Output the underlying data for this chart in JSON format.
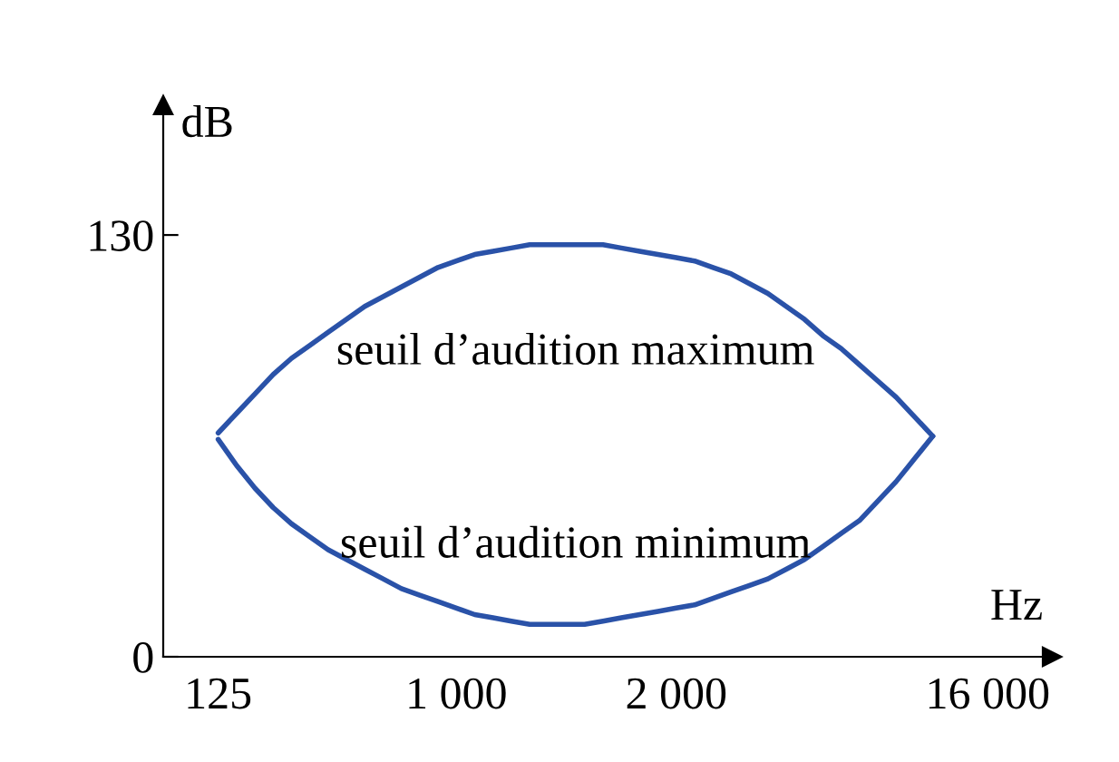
{
  "chart_data": {
    "type": "line",
    "xlabel": "Hz",
    "ylabel": "dB",
    "categories": [
      null,
      null,
      null,
      "125",
      null,
      null,
      null,
      null,
      null,
      null,
      null,
      null,
      null,
      null,
      null,
      null,
      "1 000",
      null,
      null,
      null,
      null,
      null,
      null,
      null,
      null,
      null,
      null,
      null,
      "2 000",
      null,
      null,
      null,
      null,
      null,
      null,
      null,
      null,
      null,
      null,
      null,
      null,
      null,
      null,
      null,
      null,
      "16 000",
      null,
      null,
      null
    ],
    "series": [
      {
        "name": "seuil d’audition maximum",
        "color": "#2a52a8",
        "values": [
          null,
          null,
          null,
          69,
          75,
          81,
          87,
          92,
          96,
          100,
          104,
          108,
          111,
          114,
          117,
          120,
          122,
          124,
          125,
          126,
          127,
          127,
          127,
          127,
          127,
          126,
          125,
          124,
          123,
          122,
          120,
          118,
          115,
          112,
          108,
          104,
          99,
          95,
          90,
          85,
          80,
          74,
          68,
          null,
          null,
          null,
          null,
          null,
          null
        ]
      },
      {
        "name": "seuil d’audition minimum",
        "color": "#2a52a8",
        "values": [
          null,
          null,
          null,
          67,
          59,
          52,
          46,
          41,
          37,
          33,
          30,
          27,
          24,
          21,
          19,
          17,
          15,
          13,
          12,
          11,
          10,
          10,
          10,
          10,
          11,
          12,
          13,
          14,
          15,
          16,
          18,
          20,
          22,
          24,
          27,
          30,
          34,
          38,
          42,
          48,
          54,
          61,
          68,
          null,
          null,
          null,
          null,
          null,
          null
        ]
      }
    ],
    "ylim": [
      0,
      170
    ],
    "yticks": [
      0,
      130
    ],
    "grid": false,
    "legend": false,
    "marker": "none",
    "line_style": "solid"
  }
}
